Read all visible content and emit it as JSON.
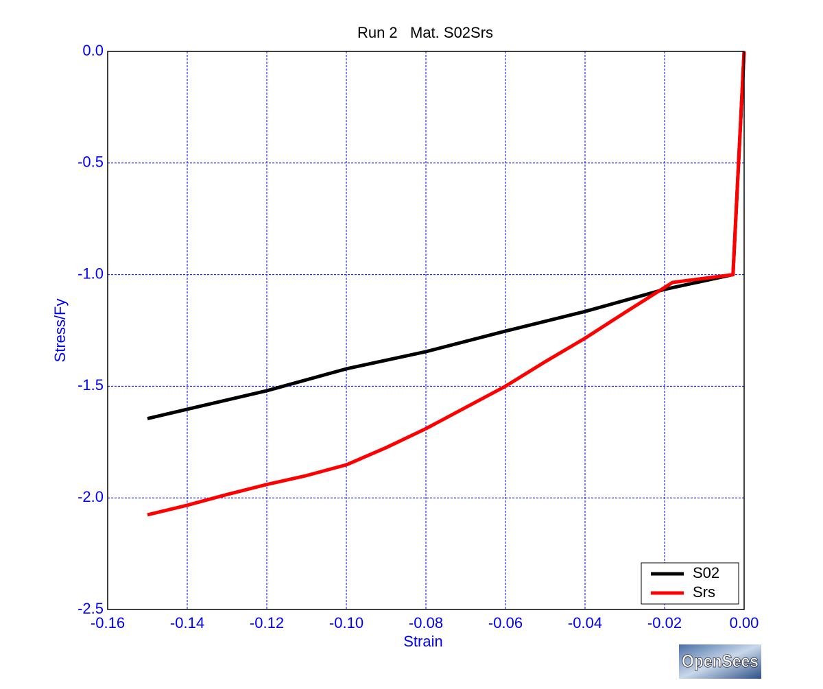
{
  "chart_data": {
    "type": "line",
    "title": "Run 2   Mat. S02Srs",
    "xlabel": "Strain",
    "ylabel": "Stress/Fy",
    "xlim": [
      -0.16,
      0
    ],
    "ylim": [
      -2.5,
      0
    ],
    "xticks": [
      -0.16,
      -0.14,
      -0.12,
      {
        "value": -0.1,
        "label": "-0.10"
      },
      -0.08,
      -0.06,
      -0.04,
      -0.02,
      {
        "value": 0,
        "label": "0.00"
      }
    ],
    "yticks": [
      {
        "value": 0,
        "label": "0.0"
      },
      -0.5,
      {
        "value": -1,
        "label": "-1.0"
      },
      -1.5,
      {
        "value": -2,
        "label": "-2.0"
      },
      -2.5
    ],
    "grid": true,
    "legend": "lower right",
    "series": [
      {
        "name": "S02",
        "color": "#000000",
        "x": [
          0,
          -0.0028,
          -0.02,
          -0.04,
          -0.06,
          -0.08,
          -0.1,
          -0.12,
          -0.14,
          -0.15
        ],
        "values": [
          0,
          -1.0,
          -1.066,
          -1.165,
          -1.253,
          -1.345,
          -1.422,
          -1.52,
          -1.603,
          -1.645
        ]
      },
      {
        "name": "Srs",
        "color": "#ff0000",
        "x": [
          0,
          -0.0028,
          -0.018,
          -0.03,
          -0.04,
          -0.05,
          -0.06,
          -0.07,
          -0.08,
          -0.09,
          -0.1,
          -0.11,
          -0.12,
          -0.13,
          -0.14,
          -0.15
        ],
        "values": [
          0,
          -1.0,
          -1.035,
          -1.17,
          -1.285,
          -1.39,
          -1.5,
          -1.595,
          -1.69,
          -1.775,
          -1.852,
          -1.9,
          -1.94,
          -1.985,
          -2.033,
          -2.076
        ]
      }
    ]
  },
  "logo": "OpenSees"
}
